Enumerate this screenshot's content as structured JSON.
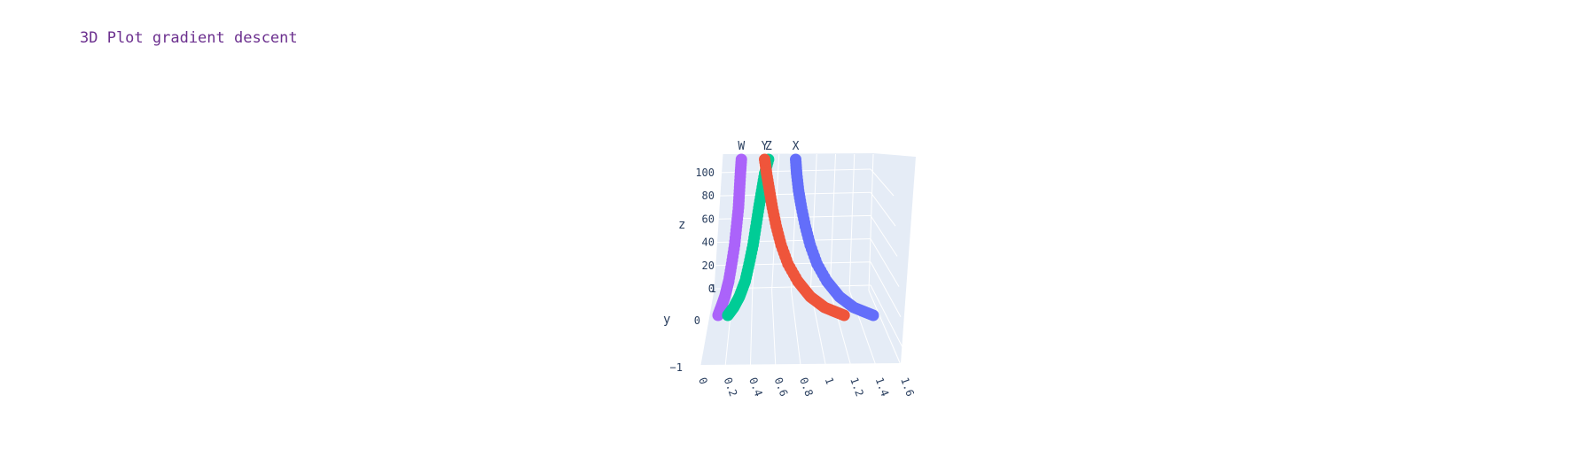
{
  "chart_data": {
    "type": "scatter",
    "mode": "3d",
    "title": "3D Plot gradient descent",
    "axes": {
      "x": {
        "label": "",
        "ticks": [
          "0",
          "0.2",
          "0.4",
          "0.6",
          "0.8",
          "1",
          "1.2",
          "1.4",
          "1.6"
        ]
      },
      "y": {
        "label": "y",
        "ticks": [
          "−1",
          "0",
          "1"
        ]
      },
      "z": {
        "label": "z",
        "ticks": [
          "0",
          "20",
          "40",
          "60",
          "80",
          "100"
        ]
      }
    },
    "grid": true,
    "series": [
      {
        "name": "W",
        "color": "#ab63fa",
        "x": [
          0.0,
          0.03,
          0.07,
          0.11,
          0.14,
          0.17,
          0.19,
          0.21,
          0.22,
          0.23,
          0.24
        ],
        "z": [
          0,
          5,
          12,
          22,
          33,
          45,
          57,
          69,
          80,
          91,
          100
        ]
      },
      {
        "name": "Z",
        "color": "#00cc96",
        "x": [
          0.1,
          0.16,
          0.22,
          0.28,
          0.32,
          0.36,
          0.39,
          0.42,
          0.45,
          0.48,
          0.52
        ],
        "z": [
          0,
          5,
          12,
          22,
          33,
          45,
          57,
          69,
          80,
          91,
          100
        ]
      },
      {
        "name": "Y",
        "color": "#ef553b",
        "x": [
          1.3,
          1.1,
          0.95,
          0.82,
          0.72,
          0.65,
          0.6,
          0.56,
          0.53,
          0.5,
          0.48
        ],
        "z": [
          0,
          5,
          12,
          22,
          33,
          45,
          57,
          69,
          80,
          91,
          100
        ]
      },
      {
        "name": "X",
        "color": "#636efa",
        "x": [
          1.6,
          1.4,
          1.25,
          1.12,
          1.02,
          0.95,
          0.9,
          0.86,
          0.83,
          0.81,
          0.8
        ],
        "z": [
          0,
          5,
          12,
          22,
          33,
          45,
          57,
          69,
          80,
          91,
          100
        ]
      }
    ]
  }
}
